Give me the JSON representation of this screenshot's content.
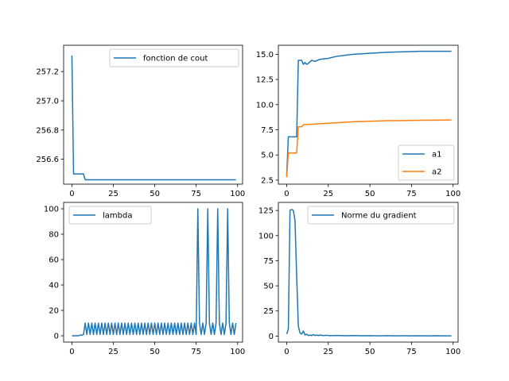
{
  "chart_data": [
    {
      "type": "line",
      "title": "",
      "xlabel": "",
      "ylabel": "",
      "xlim": [
        -5,
        103
      ],
      "ylim": [
        256.43,
        257.38
      ],
      "xticks": [
        0,
        25,
        50,
        75,
        100
      ],
      "yticks": [
        256.6,
        256.8,
        257.0,
        257.2
      ],
      "ytick_labels": [
        "256.6",
        "256.8",
        "257.0",
        "257.2"
      ],
      "legend_position": "top-right",
      "series": [
        {
          "name": "fonction de cout",
          "color": "#1f77b4",
          "points": [
            [
              0,
              257.31
            ],
            [
              1,
              256.5
            ],
            [
              2,
              256.5
            ],
            [
              7,
              256.5
            ],
            [
              8,
              256.46
            ],
            [
              99,
              256.46
            ]
          ]
        }
      ]
    },
    {
      "type": "line",
      "title": "",
      "xlabel": "",
      "ylabel": "",
      "xlim": [
        -5,
        103
      ],
      "ylim": [
        2.1,
        15.9
      ],
      "xticks": [
        0,
        25,
        50,
        75,
        100
      ],
      "yticks": [
        2.5,
        5.0,
        7.5,
        10.0,
        12.5,
        15.0
      ],
      "ytick_labels": [
        "2.5",
        "5.0",
        "7.5",
        "10.0",
        "12.5",
        "15.0"
      ],
      "legend_position": "bottom-right",
      "series": [
        {
          "name": "a1",
          "color": "#1f77b4",
          "points": [
            [
              0,
              3.0
            ],
            [
              1,
              6.8
            ],
            [
              6,
              6.8
            ],
            [
              7,
              14.4
            ],
            [
              9,
              14.4
            ],
            [
              10,
              14.0
            ],
            [
              11,
              14.2
            ],
            [
              12,
              14.0
            ],
            [
              13,
              14.1
            ],
            [
              15,
              14.4
            ],
            [
              17,
              14.3
            ],
            [
              20,
              14.5
            ],
            [
              25,
              14.6
            ],
            [
              30,
              14.8
            ],
            [
              35,
              14.9
            ],
            [
              40,
              15.0
            ],
            [
              45,
              15.05
            ],
            [
              50,
              15.1
            ],
            [
              60,
              15.2
            ],
            [
              70,
              15.25
            ],
            [
              80,
              15.3
            ],
            [
              90,
              15.3
            ],
            [
              99,
              15.3
            ]
          ]
        },
        {
          "name": "a2",
          "color": "#ff7f0e",
          "points": [
            [
              0,
              2.8
            ],
            [
              1,
              5.2
            ],
            [
              6,
              5.2
            ],
            [
              7,
              7.8
            ],
            [
              9,
              7.8
            ],
            [
              10,
              8.0
            ],
            [
              15,
              8.05
            ],
            [
              20,
              8.1
            ],
            [
              30,
              8.2
            ],
            [
              40,
              8.3
            ],
            [
              50,
              8.35
            ],
            [
              60,
              8.4
            ],
            [
              70,
              8.42
            ],
            [
              80,
              8.45
            ],
            [
              90,
              8.46
            ],
            [
              99,
              8.48
            ]
          ]
        }
      ]
    },
    {
      "type": "line",
      "title": "",
      "xlabel": "",
      "ylabel": "",
      "xlim": [
        -5,
        103
      ],
      "ylim": [
        -5,
        105
      ],
      "xticks": [
        0,
        25,
        50,
        75,
        100
      ],
      "yticks": [
        0,
        20,
        40,
        60,
        80,
        100
      ],
      "ytick_labels": [
        "0",
        "20",
        "40",
        "60",
        "80",
        "100"
      ],
      "legend_position": "top-left",
      "series": [
        {
          "name": "lambda",
          "color": "#1f77b4",
          "pattern_note_free": true,
          "points": [
            [
              0,
              0
            ],
            [
              1,
              0
            ],
            [
              2,
              0
            ],
            [
              3,
              0
            ],
            [
              4,
              0
            ],
            [
              5,
              0.5
            ],
            [
              6,
              0.5
            ],
            [
              7,
              1
            ],
            [
              8,
              10
            ],
            [
              9,
              1
            ],
            [
              10,
              10
            ],
            [
              11,
              1
            ],
            [
              12,
              10
            ],
            [
              13,
              1
            ],
            [
              14,
              10
            ],
            [
              15,
              1
            ],
            [
              16,
              10
            ],
            [
              17,
              1
            ],
            [
              18,
              10
            ],
            [
              19,
              1
            ],
            [
              20,
              10
            ],
            [
              21,
              1
            ],
            [
              22,
              10
            ],
            [
              23,
              1
            ],
            [
              24,
              10
            ],
            [
              25,
              1
            ],
            [
              26,
              10
            ],
            [
              27,
              1
            ],
            [
              28,
              10
            ],
            [
              29,
              1
            ],
            [
              30,
              10
            ],
            [
              31,
              1
            ],
            [
              32,
              10
            ],
            [
              33,
              1
            ],
            [
              34,
              10
            ],
            [
              35,
              1
            ],
            [
              36,
              10
            ],
            [
              37,
              1
            ],
            [
              38,
              10
            ],
            [
              39,
              1
            ],
            [
              40,
              10
            ],
            [
              41,
              1
            ],
            [
              42,
              10
            ],
            [
              43,
              1
            ],
            [
              44,
              10
            ],
            [
              45,
              1
            ],
            [
              46,
              10
            ],
            [
              47,
              1
            ],
            [
              48,
              10
            ],
            [
              49,
              1
            ],
            [
              50,
              10
            ],
            [
              51,
              1
            ],
            [
              52,
              10
            ],
            [
              53,
              1
            ],
            [
              54,
              10
            ],
            [
              55,
              1
            ],
            [
              56,
              10
            ],
            [
              57,
              1
            ],
            [
              58,
              10
            ],
            [
              59,
              1
            ],
            [
              60,
              10
            ],
            [
              61,
              1
            ],
            [
              62,
              10
            ],
            [
              63,
              1
            ],
            [
              64,
              10
            ],
            [
              65,
              1
            ],
            [
              66,
              10
            ],
            [
              67,
              1
            ],
            [
              68,
              10
            ],
            [
              69,
              1
            ],
            [
              70,
              10
            ],
            [
              71,
              1
            ],
            [
              72,
              10
            ],
            [
              73,
              1
            ],
            [
              74,
              10
            ],
            [
              75,
              1
            ],
            [
              76,
              100
            ],
            [
              77,
              10
            ],
            [
              78,
              1
            ],
            [
              79,
              10
            ],
            [
              80,
              1
            ],
            [
              81,
              10
            ],
            [
              82,
              100
            ],
            [
              83,
              10
            ],
            [
              84,
              1
            ],
            [
              85,
              10
            ],
            [
              86,
              1
            ],
            [
              87,
              10
            ],
            [
              88,
              100
            ],
            [
              89,
              10
            ],
            [
              90,
              1
            ],
            [
              91,
              10
            ],
            [
              92,
              1
            ],
            [
              93,
              10
            ],
            [
              94,
              100
            ],
            [
              95,
              10
            ],
            [
              96,
              1
            ],
            [
              97,
              10
            ],
            [
              98,
              1
            ],
            [
              99,
              10
            ]
          ]
        }
      ]
    },
    {
      "type": "line",
      "title": "",
      "xlabel": "",
      "ylabel": "",
      "xlim": [
        -5,
        103
      ],
      "ylim": [
        -6,
        133
      ],
      "xticks": [
        0,
        25,
        50,
        75,
        100
      ],
      "yticks": [
        0,
        25,
        50,
        75,
        100,
        125
      ],
      "ytick_labels": [
        "0",
        "25",
        "50",
        "75",
        "100",
        "125"
      ],
      "legend_position": "top-right",
      "series": [
        {
          "name": "Norme du gradient",
          "color": "#1f77b4",
          "points": [
            [
              0,
              2
            ],
            [
              1,
              7
            ],
            [
              2,
              125
            ],
            [
              3,
              126
            ],
            [
              4,
              125
            ],
            [
              5,
              115
            ],
            [
              6,
              60
            ],
            [
              7,
              10
            ],
            [
              8,
              3
            ],
            [
              9,
              2
            ],
            [
              10,
              5
            ],
            [
              11,
              1
            ],
            [
              12,
              2
            ],
            [
              13,
              0.5
            ],
            [
              14,
              1
            ],
            [
              15,
              0.5
            ],
            [
              16,
              1.5
            ],
            [
              17,
              0.5
            ],
            [
              18,
              1
            ],
            [
              19,
              0.5
            ],
            [
              20,
              1
            ],
            [
              22,
              0.5
            ],
            [
              24,
              0.8
            ],
            [
              26,
              0.4
            ],
            [
              30,
              0.6
            ],
            [
              35,
              0.3
            ],
            [
              40,
              0.5
            ],
            [
              45,
              0.3
            ],
            [
              50,
              0.4
            ],
            [
              55,
              0.2
            ],
            [
              60,
              0.4
            ],
            [
              65,
              0.2
            ],
            [
              70,
              0.3
            ],
            [
              75,
              0.2
            ],
            [
              80,
              0.3
            ],
            [
              85,
              0.2
            ],
            [
              90,
              0.3
            ],
            [
              95,
              0.2
            ],
            [
              99,
              0.2
            ]
          ]
        }
      ]
    }
  ]
}
